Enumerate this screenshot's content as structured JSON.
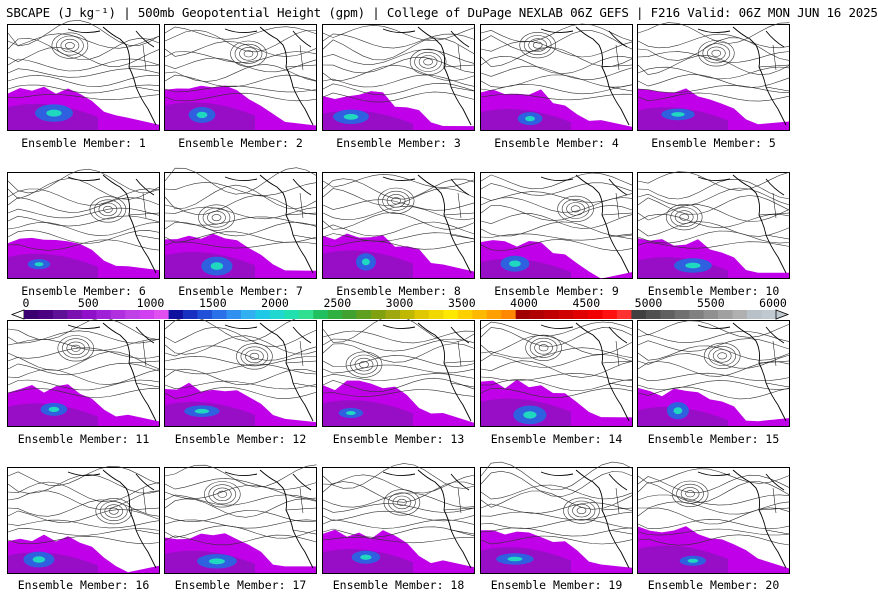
{
  "header": {
    "title": "SBCAPE (J kg⁻¹) | 500mb Geopotential Height (gpm) | College of DuPage NEXLAB 06Z GEFS | F216 Valid: 06Z MON JUN 16 2025"
  },
  "members": [
    "Ensemble Member: 1",
    "Ensemble Member: 2",
    "Ensemble Member: 3",
    "Ensemble Member: 4",
    "Ensemble Member: 5",
    "Ensemble Member: 6",
    "Ensemble Member: 7",
    "Ensemble Member: 8",
    "Ensemble Member: 9",
    "Ensemble Member: 10",
    "Ensemble Member: 11",
    "Ensemble Member: 12",
    "Ensemble Member: 13",
    "Ensemble Member: 14",
    "Ensemble Member: 15",
    "Ensemble Member: 16",
    "Ensemble Member: 17",
    "Ensemble Member: 18",
    "Ensemble Member: 19",
    "Ensemble Member: 20"
  ],
  "colorbar": {
    "ticks": [
      "0",
      "500",
      "1000",
      "1500",
      "2000",
      "2500",
      "3000",
      "3500",
      "4000",
      "4500",
      "5000",
      "5500",
      "6000"
    ],
    "min": 0,
    "max": 6000,
    "colors": [
      "#3a0070",
      "#4b0082",
      "#5e1096",
      "#7a10b0",
      "#8f10c8",
      "#a020d8",
      "#b030e0",
      "#c040e8",
      "#d040f0",
      "#e050f0",
      "#1010a0",
      "#1830c0",
      "#2050d8",
      "#2a70e8",
      "#3090f0",
      "#30b0f0",
      "#20c8e8",
      "#20d8d0",
      "#20e0b0",
      "#30e090",
      "#20c060",
      "#30b040",
      "#40a030",
      "#60a020",
      "#80a010",
      "#a0a810",
      "#c0b800",
      "#e0c800",
      "#f0d800",
      "#ffe800",
      "#ffd000",
      "#ffb800",
      "#ffa000",
      "#ff8800",
      "#a00000",
      "#b00000",
      "#c00000",
      "#d00000",
      "#e00000",
      "#f00000",
      "#ff1010",
      "#ff3030",
      "#404040",
      "#505050",
      "#606060",
      "#707070",
      "#808080",
      "#909090",
      "#a0a0a0",
      "#b0b0b0",
      "#b8c0c8",
      "#c0c8d0"
    ]
  },
  "map_colors": {
    "cape_low": "#9010c0",
    "cape_mid": "#c000e8",
    "cape_high": "#2f60e0",
    "cape_peak": "#20d8c0",
    "contour": "#333333",
    "coast": "#000000"
  }
}
